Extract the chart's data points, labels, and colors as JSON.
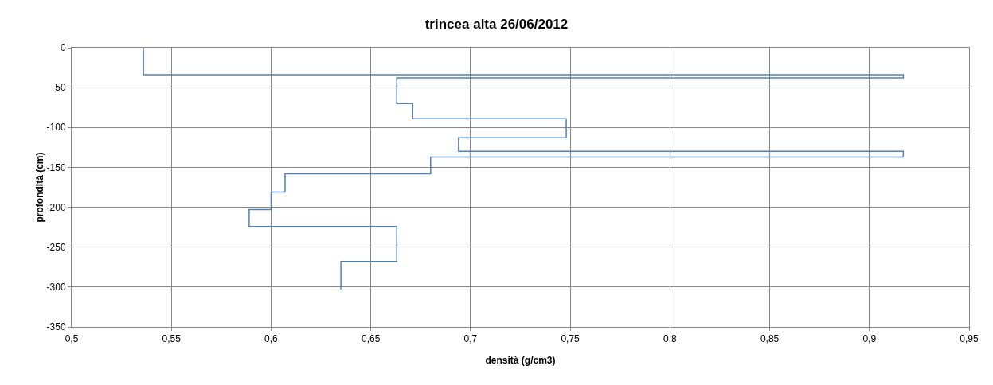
{
  "chart_data": {
    "type": "line",
    "title": "trincea alta 26/06/2012",
    "xlabel": "densità (g/cm3)",
    "ylabel": "profondità (cm)",
    "series": [
      {
        "color": "#4f81bd",
        "x": [
          0.536,
          0.536,
          0.917,
          0.917,
          0.663,
          0.663,
          0.671,
          0.671,
          0.748,
          0.748,
          0.694,
          0.694,
          0.917,
          0.917,
          0.68,
          0.68,
          0.607,
          0.607,
          0.6,
          0.6,
          0.589,
          0.589,
          0.663,
          0.663,
          0.635,
          0.635
        ],
        "values": [
          0,
          -34,
          -34,
          -38,
          -38,
          -70,
          -70,
          -89,
          -89,
          -113,
          -113,
          -130,
          -130,
          -137,
          -137,
          -158,
          -158,
          -181,
          -181,
          -203,
          -203,
          -224,
          -224,
          -268,
          -268,
          -303
        ]
      }
    ],
    "xlim": [
      0.5,
      0.95
    ],
    "xticks": [
      {
        "value": 0.5,
        "label": "0,5"
      },
      {
        "value": 0.55,
        "label": "0,55"
      },
      {
        "value": 0.6,
        "label": "0,6"
      },
      {
        "value": 0.65,
        "label": "0,65"
      },
      {
        "value": 0.7,
        "label": "0,7"
      },
      {
        "value": 0.75,
        "label": "0,75"
      },
      {
        "value": 0.8,
        "label": "0,8"
      },
      {
        "value": 0.85,
        "label": "0,85"
      },
      {
        "value": 0.9,
        "label": "0,9"
      },
      {
        "value": 0.95,
        "label": "0,95"
      }
    ],
    "ylim": [
      -350,
      0
    ],
    "yticks": [
      -350,
      -300,
      -250,
      -200,
      -150,
      -100,
      -50,
      0
    ],
    "grid": true,
    "marker": "none",
    "line_style": "solid"
  }
}
